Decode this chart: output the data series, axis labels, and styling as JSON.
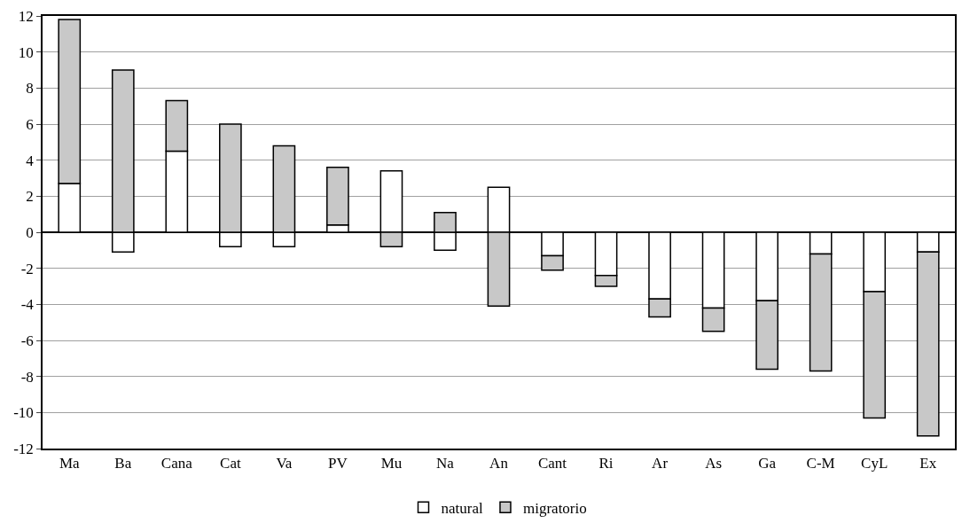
{
  "chart_data": {
    "type": "bar",
    "stacked": true,
    "categories": [
      "Ma",
      "Ba",
      "Cana",
      "Cat",
      "Va",
      "PV",
      "Mu",
      "Na",
      "An",
      "Cant",
      "Ri",
      "Ar",
      "As",
      "Ga",
      "C-M",
      "CyL",
      "Ex"
    ],
    "series": [
      {
        "name": "natural",
        "color": "#ffffff",
        "values": [
          2.7,
          -1.1,
          4.5,
          -0.8,
          -0.8,
          0.4,
          3.4,
          -1.0,
          2.5,
          -1.3,
          -2.4,
          -3.7,
          -4.2,
          -3.8,
          -1.2,
          -3.3,
          -1.1
        ]
      },
      {
        "name": "migratorio",
        "color": "#c8c8c8",
        "values": [
          9.1,
          9.0,
          2.8,
          6.0,
          4.8,
          3.2,
          -0.8,
          1.1,
          -4.1,
          -0.8,
          -0.6,
          -1.0,
          -1.3,
          -3.8,
          -6.5,
          -7.0,
          -10.2
        ]
      }
    ],
    "ylim": [
      -12,
      12
    ],
    "yticks": [
      -12,
      -10,
      -8,
      -6,
      -4,
      -2,
      0,
      2,
      4,
      6,
      8,
      10,
      12
    ],
    "grid": "y",
    "legend": "bottom"
  }
}
